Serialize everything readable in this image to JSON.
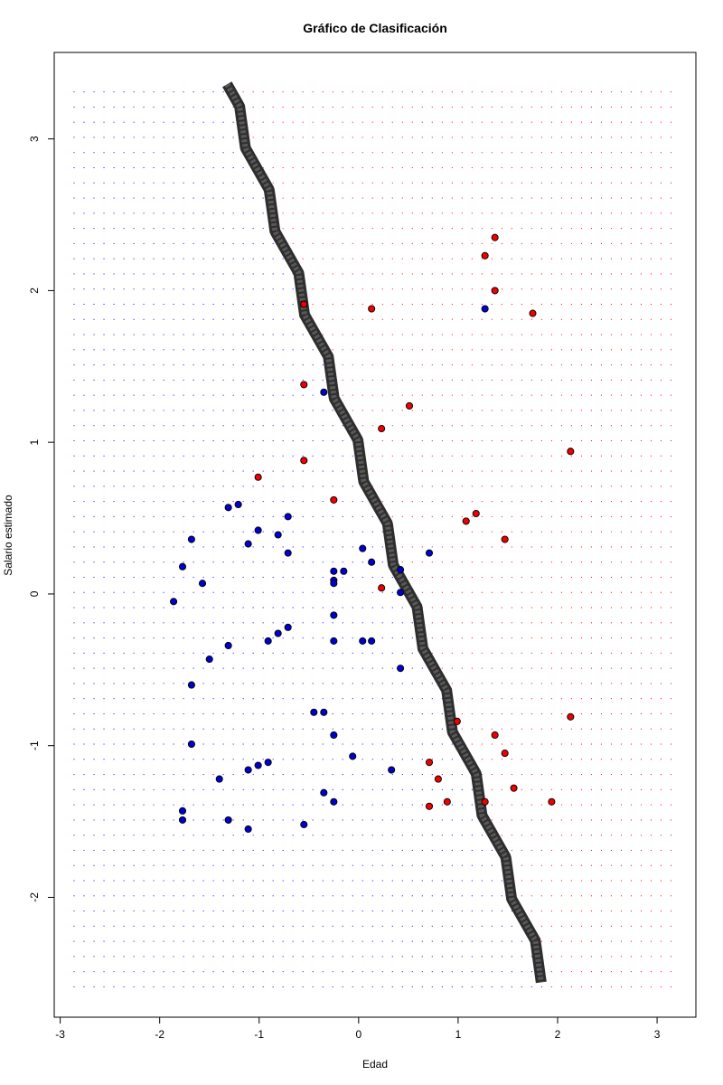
{
  "chart_data": {
    "type": "scatter",
    "title": "Gráfico de Clasificación",
    "xlabel": "Edad",
    "ylabel": "Salario estimado",
    "xlim": [
      -3.06,
      3.39
    ],
    "ylim": [
      -2.79,
      3.57
    ],
    "x_ticks": [
      "-3",
      "-2",
      "-1",
      "0",
      "1",
      "2",
      "3"
    ],
    "y_ticks": [
      "-2",
      "-1",
      "0",
      "1",
      "2",
      "3"
    ],
    "grid": {
      "x_min": -2.86,
      "x_max": 3.14,
      "x_step": 0.1,
      "y_min": -2.59,
      "y_max": 3.36,
      "y_step": 0.1
    },
    "boundary": {
      "line": [
        [
          -1.32,
          3.36
        ],
        [
          1.88,
          -2.56
        ]
      ],
      "zigzag_amplitude": 0.045,
      "zigzag_period": 0.55,
      "colors": [
        "#585858",
        "#2e2e2e"
      ]
    },
    "region_colors": {
      "0": "#0000ff",
      "1": "#ff0000"
    },
    "point_colors": {
      "0": "#0000cd",
      "1": "#ee0000"
    },
    "series": [
      {
        "name": "0",
        "points": [
          [
            -0.35,
            1.33
          ],
          [
            1.27,
            1.88
          ],
          [
            -1.21,
            0.59
          ],
          [
            -1.31,
            0.57
          ],
          [
            -1.01,
            0.42
          ],
          [
            -1.11,
            0.33
          ],
          [
            -0.81,
            0.39
          ],
          [
            -0.71,
            0.51
          ],
          [
            -0.71,
            0.27
          ],
          [
            -1.68,
            0.36
          ],
          [
            -1.77,
            0.18
          ],
          [
            -1.57,
            0.07
          ],
          [
            -1.86,
            -0.05
          ],
          [
            -0.25,
            0.15
          ],
          [
            -0.25,
            0.09
          ],
          [
            -0.25,
            0.07
          ],
          [
            -0.15,
            0.15
          ],
          [
            0.04,
            0.3
          ],
          [
            0.13,
            0.21
          ],
          [
            0.71,
            0.27
          ],
          [
            0.42,
            0.16
          ],
          [
            0.42,
            0.01
          ],
          [
            -0.25,
            -0.14
          ],
          [
            -0.71,
            -0.22
          ],
          [
            -0.81,
            -0.26
          ],
          [
            -0.91,
            -0.31
          ],
          [
            -1.31,
            -0.34
          ],
          [
            -1.5,
            -0.43
          ],
          [
            -0.25,
            -0.31
          ],
          [
            0.04,
            -0.31
          ],
          [
            0.13,
            -0.31
          ],
          [
            0.42,
            -0.49
          ],
          [
            -1.68,
            -0.6
          ],
          [
            -0.45,
            -0.78
          ],
          [
            -0.35,
            -0.78
          ],
          [
            -0.25,
            -0.93
          ],
          [
            -1.68,
            -0.99
          ],
          [
            -0.06,
            -1.07
          ],
          [
            -0.91,
            -1.11
          ],
          [
            -1.01,
            -1.13
          ],
          [
            -1.11,
            -1.16
          ],
          [
            0.33,
            -1.16
          ],
          [
            -1.4,
            -1.22
          ],
          [
            -0.35,
            -1.31
          ],
          [
            -0.25,
            -1.37
          ],
          [
            -1.77,
            -1.43
          ],
          [
            -1.77,
            -1.49
          ],
          [
            -1.31,
            -1.49
          ],
          [
            -0.55,
            -1.52
          ],
          [
            -1.11,
            -1.55
          ]
        ]
      },
      {
        "name": "1",
        "points": [
          [
            1.37,
            2.35
          ],
          [
            1.27,
            2.23
          ],
          [
            1.37,
            2.0
          ],
          [
            -0.55,
            1.91
          ],
          [
            0.13,
            1.88
          ],
          [
            1.75,
            1.85
          ],
          [
            -0.55,
            1.38
          ],
          [
            0.51,
            1.24
          ],
          [
            0.23,
            1.09
          ],
          [
            2.13,
            0.94
          ],
          [
            -0.55,
            0.88
          ],
          [
            -1.01,
            0.77
          ],
          [
            -0.25,
            0.62
          ],
          [
            1.18,
            0.53
          ],
          [
            1.08,
            0.48
          ],
          [
            1.47,
            0.36
          ],
          [
            0.23,
            0.04
          ],
          [
            0.99,
            -0.84
          ],
          [
            2.13,
            -0.81
          ],
          [
            1.37,
            -0.93
          ],
          [
            1.47,
            -1.05
          ],
          [
            0.71,
            -1.11
          ],
          [
            0.8,
            -1.22
          ],
          [
            1.56,
            -1.28
          ],
          [
            0.89,
            -1.37
          ],
          [
            1.27,
            -1.37
          ],
          [
            1.94,
            -1.37
          ],
          [
            0.71,
            -1.4
          ]
        ]
      }
    ]
  }
}
